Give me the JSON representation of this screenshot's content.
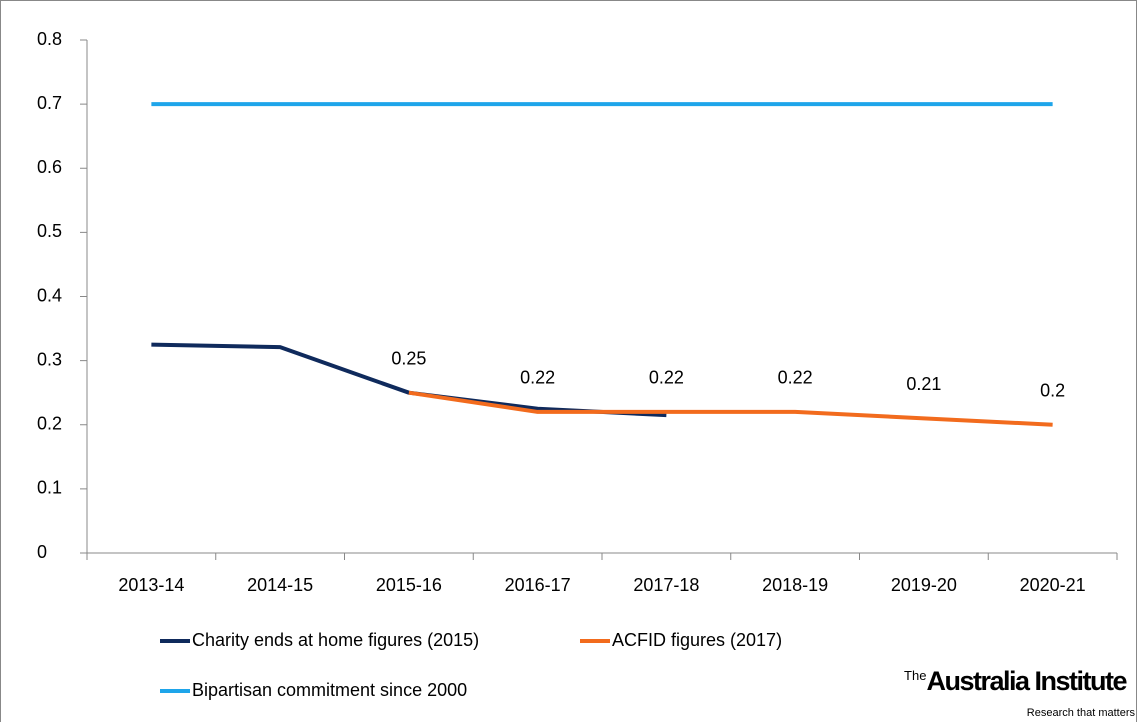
{
  "chart_data": {
    "type": "line",
    "categories": [
      "2013-14",
      "2014-15",
      "2015-16",
      "2016-17",
      "2017-18",
      "2018-19",
      "2019-20",
      "2020-21"
    ],
    "series": [
      {
        "name": "Charity ends at home figures (2015)",
        "color": "#0f2a5c",
        "values": [
          0.325,
          0.321,
          0.25,
          0.225,
          0.215,
          null,
          null,
          null
        ],
        "data_labels": false
      },
      {
        "name": "ACFID figures (2017)",
        "color": "#f26b1d",
        "values": [
          null,
          null,
          0.25,
          0.22,
          0.22,
          0.22,
          0.21,
          0.2
        ],
        "data_labels": true
      },
      {
        "name": "Bipartisan commitment since 2000",
        "color": "#1ea5ea",
        "values": [
          0.7,
          0.7,
          0.7,
          0.7,
          0.7,
          0.7,
          0.7,
          0.7
        ],
        "data_labels": false
      }
    ],
    "ylim": [
      0,
      0.8
    ],
    "yticks": [
      0,
      0.1,
      0.2,
      0.3,
      0.4,
      0.5,
      0.6,
      0.7,
      0.8
    ],
    "grid": false,
    "legend": "bottom",
    "logo": {
      "prefix": "The",
      "name": "Australia Institute",
      "tagline": "Research that matters"
    }
  }
}
